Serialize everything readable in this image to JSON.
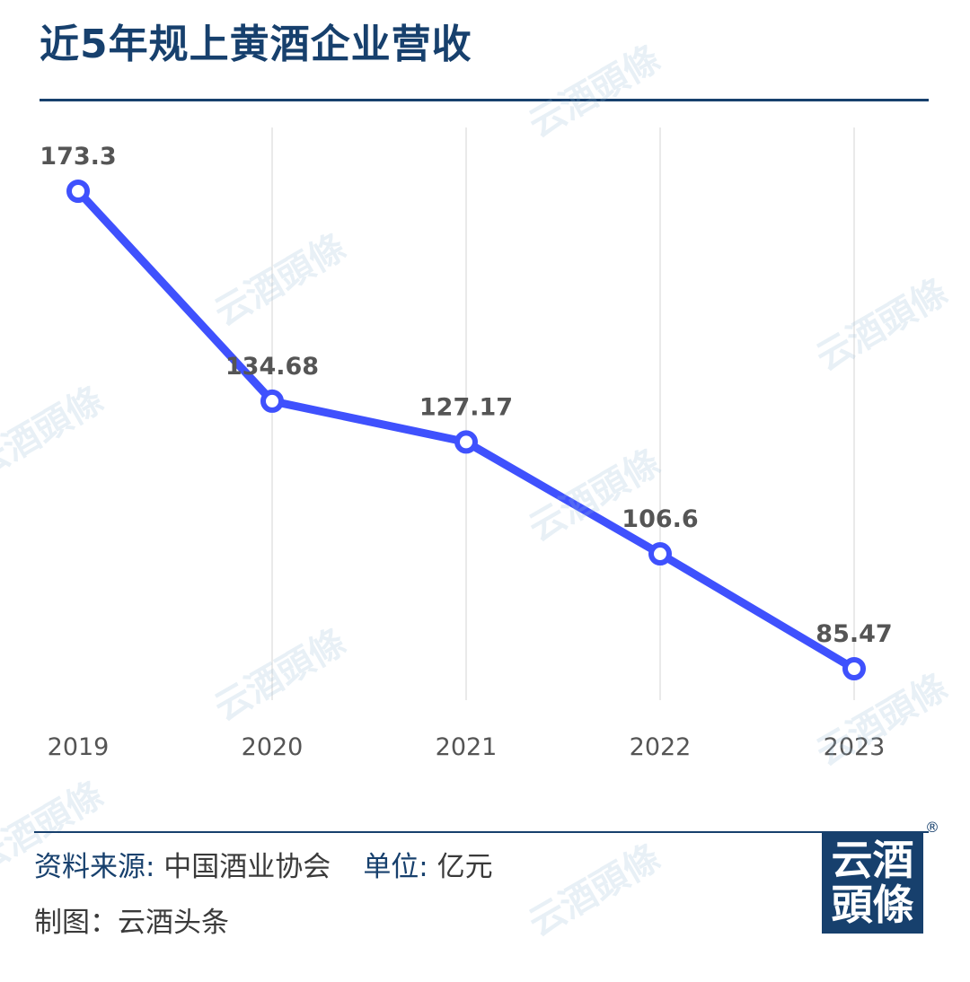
{
  "title": "近5年规上黄酒企业营收",
  "chart_data": {
    "type": "line",
    "categories": [
      "2019",
      "2020",
      "2021",
      "2022",
      "2023"
    ],
    "values": [
      173.3,
      134.68,
      127.17,
      106.6,
      85.47
    ],
    "data_labels": [
      "173.3",
      "134.68",
      "127.17",
      "106.6",
      "85.47"
    ],
    "title": "近5年规上黄酒企业营收",
    "xlabel": "",
    "ylabel": "",
    "ylim": [
      0,
      200
    ],
    "grid": "vertical",
    "legend": "none",
    "line_color": "#3f51fd",
    "label_color": "#555555"
  },
  "footer": {
    "source_key": "资料来源:",
    "source_value": " 中国酒业协会",
    "unit_key": "单位:",
    "unit_value": " 亿元",
    "credit": "制图：云酒头条"
  },
  "logo": {
    "line1": "云酒",
    "line2": "頭條",
    "mark": "®"
  },
  "watermark": "云酒頭條",
  "colors": {
    "brand": "#17406d",
    "line": "#3f51fd"
  }
}
